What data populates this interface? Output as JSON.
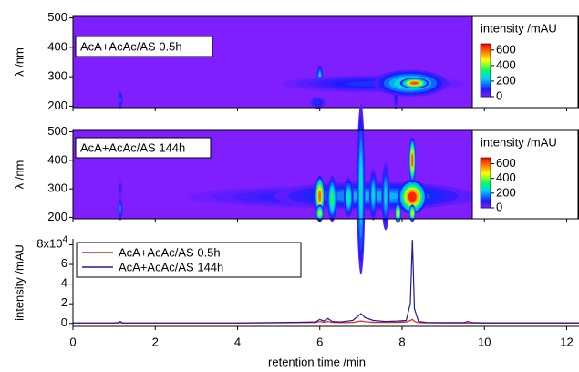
{
  "chart_data": [
    {
      "type": "heatmap",
      "annotation": "AcA+AcAc/AS 0.5h",
      "ylabel": "λ /nm",
      "xlim": [
        0,
        12.3
      ],
      "xticks": [
        0,
        2,
        4,
        6,
        8,
        10,
        12
      ],
      "ylim": [
        195,
        505
      ],
      "yticks": [
        200,
        300,
        400,
        500
      ],
      "colormap": "rainbow",
      "colorbar": {
        "title": "intensity /mAU",
        "clim": [
          0,
          680
        ],
        "ticks": [
          0,
          200,
          400,
          600
        ]
      },
      "spots": [
        {
          "rt": 1.15,
          "wl": 222,
          "intensity": 150,
          "rt_width": 0.06,
          "wl_width": 30
        },
        {
          "rt": 6.0,
          "wl": 300,
          "intensity": 250,
          "rt_width": 0.08,
          "wl_width": 40
        },
        {
          "rt": 5.95,
          "wl": 212,
          "intensity": 120,
          "rt_width": 0.2,
          "wl_width": 20
        },
        {
          "rt": 7.85,
          "wl": 230,
          "intensity": 100,
          "rt_width": 0.06,
          "wl_width": 40
        },
        {
          "rt": 7.3,
          "wl": 276,
          "intensity": 120,
          "rt_width": 2.2,
          "wl_width": 30
        },
        {
          "rt": 8.2,
          "wl": 278,
          "intensity": 320,
          "rt_width": 0.9,
          "wl_width": 45
        },
        {
          "rt": 8.3,
          "wl": 278,
          "intensity": 620,
          "rt_width": 0.35,
          "wl_width": 18
        }
      ]
    },
    {
      "type": "heatmap",
      "annotation": "AcA+AcAc/AS 144h",
      "ylabel": "λ /nm",
      "xlim": [
        0,
        12.3
      ],
      "xticks": [
        0,
        2,
        4,
        6,
        8,
        10,
        12
      ],
      "ylim": [
        195,
        505
      ],
      "yticks": [
        200,
        300,
        400,
        500
      ],
      "colormap": "rainbow",
      "colorbar": {
        "title": "intensity /mAU",
        "clim": [
          0,
          680
        ],
        "ticks": [
          0,
          200,
          400,
          600
        ]
      },
      "spots": [
        {
          "rt": 1.15,
          "wl": 230,
          "intensity": 180,
          "rt_width": 0.06,
          "wl_width": 40
        },
        {
          "rt": 1.15,
          "wl": 300,
          "intensity": 80,
          "rt_width": 0.05,
          "wl_width": 30
        },
        {
          "rt": 6.6,
          "wl": 272,
          "intensity": 110,
          "rt_width": 3.8,
          "wl_width": 40
        },
        {
          "rt": 7.3,
          "wl": 275,
          "intensity": 220,
          "rt_width": 2.4,
          "wl_width": 50
        },
        {
          "rt": 6.0,
          "wl": 275,
          "intensity": 600,
          "rt_width": 0.12,
          "wl_width": 70
        },
        {
          "rt": 6.0,
          "wl": 215,
          "intensity": 450,
          "rt_width": 0.1,
          "wl_width": 30
        },
        {
          "rt": 6.3,
          "wl": 265,
          "intensity": 350,
          "rt_width": 0.12,
          "wl_width": 80
        },
        {
          "rt": 6.7,
          "wl": 270,
          "intensity": 300,
          "rt_width": 0.12,
          "wl_width": 70
        },
        {
          "rt": 7.0,
          "wl": 300,
          "intensity": 280,
          "rt_width": 0.1,
          "wl_width": 300
        },
        {
          "rt": 7.3,
          "wl": 280,
          "intensity": 260,
          "rt_width": 0.1,
          "wl_width": 90
        },
        {
          "rt": 7.6,
          "wl": 275,
          "intensity": 240,
          "rt_width": 0.1,
          "wl_width": 120
        },
        {
          "rt": 7.9,
          "wl": 215,
          "intensity": 520,
          "rt_width": 0.08,
          "wl_width": 35
        },
        {
          "rt": 8.25,
          "wl": 272,
          "intensity": 650,
          "rt_width": 0.35,
          "wl_width": 60
        },
        {
          "rt": 8.25,
          "wl": 400,
          "intensity": 620,
          "rt_width": 0.08,
          "wl_width": 80
        },
        {
          "rt": 8.25,
          "wl": 215,
          "intensity": 500,
          "rt_width": 0.08,
          "wl_width": 30
        }
      ]
    },
    {
      "type": "line",
      "xlabel": "retention time /min",
      "ylabel": "intensity /mAU",
      "xlim": [
        0,
        12.3
      ],
      "xticks": [
        0,
        2,
        4,
        6,
        8,
        10,
        12
      ],
      "ylim": [
        -3000,
        86000
      ],
      "yticks": [
        0,
        {
          "value": 20000,
          "label": "2"
        },
        {
          "value": 40000,
          "label": "4"
        },
        {
          "value": 60000,
          "label": "6"
        },
        {
          "value": 80000,
          "label": "8x10",
          "exponent": "4"
        }
      ],
      "legend": "upper left",
      "x": [
        0,
        1,
        1.1,
        1.15,
        1.2,
        2,
        3,
        4,
        4.8,
        5.5,
        5.9,
        6.0,
        6.1,
        6.2,
        6.3,
        6.5,
        6.8,
        7.0,
        7.1,
        7.3,
        7.6,
        7.9,
        8.1,
        8.2,
        8.25,
        8.3,
        8.4,
        8.6,
        9,
        9.5,
        9.6,
        9.7,
        10,
        11,
        12,
        12.3
      ],
      "series": [
        {
          "name": "AcA+AcAc/AS 0.5h",
          "color": "#e8201c",
          "values": [
            300,
            300,
            400,
            800,
            300,
            300,
            300,
            300,
            500,
            800,
            900,
            2000,
            1200,
            2000,
            1000,
            800,
            1000,
            2500,
            1800,
            1200,
            1000,
            1200,
            1500,
            3000,
            4000,
            2000,
            800,
            500,
            400,
            400,
            500,
            400,
            300,
            300,
            300,
            300
          ]
        },
        {
          "name": "AcA+AcAc/AS 144h",
          "color": "#1c1c9c",
          "values": [
            500,
            500,
            800,
            2000,
            600,
            500,
            500,
            500,
            800,
            1200,
            1500,
            4000,
            2500,
            5000,
            2000,
            1500,
            3000,
            10000,
            6000,
            3000,
            2000,
            2500,
            3000,
            20000,
            85000,
            15000,
            2000,
            1000,
            800,
            800,
            2000,
            800,
            600,
            600,
            600,
            600
          ]
        }
      ]
    }
  ]
}
